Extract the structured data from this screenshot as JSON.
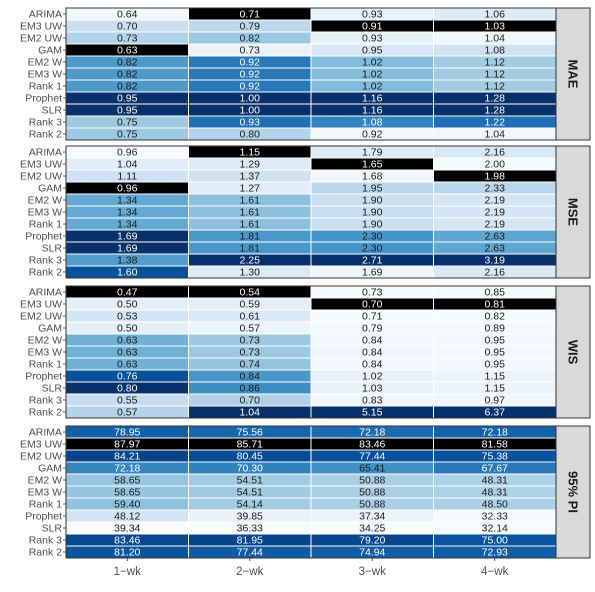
{
  "chart_data": {
    "type": "heatmap",
    "columns": [
      "1−wk",
      "2−wk",
      "3−wk",
      "4−wk"
    ],
    "rows": [
      "ARIMA",
      "EM3 UW",
      "EM2 UW",
      "GAM",
      "EM2 W",
      "EM3 W",
      "Rank 1",
      "Prophet",
      "SLR",
      "Rank 3",
      "Rank 2"
    ],
    "highlight_color": "#000000",
    "colorscale": [
      "#f7fbff",
      "#deebf7",
      "#c6dbef",
      "#9ecae1",
      "#6baed6",
      "#4292c6",
      "#2171b5",
      "#08519c",
      "#08306b"
    ],
    "panels": [
      {
        "metric": "MAE",
        "values": [
          [
            0.64,
            0.71,
            0.93,
            1.06
          ],
          [
            0.7,
            0.79,
            0.91,
            1.03
          ],
          [
            0.73,
            0.82,
            0.93,
            1.04
          ],
          [
            0.63,
            0.73,
            0.95,
            1.08
          ],
          [
            0.82,
            0.92,
            1.02,
            1.12
          ],
          [
            0.82,
            0.92,
            1.02,
            1.12
          ],
          [
            0.82,
            0.92,
            1.02,
            1.12
          ],
          [
            0.95,
            1.0,
            1.16,
            1.28
          ],
          [
            0.95,
            1.0,
            1.16,
            1.28
          ],
          [
            0.75,
            0.93,
            1.08,
            1.22
          ],
          [
            0.75,
            0.8,
            0.92,
            1.04
          ]
        ],
        "text": [
          [
            "0.64",
            "0.71",
            "0.93",
            "1.06"
          ],
          [
            "0.70",
            "0.79",
            "0.91",
            "1.03"
          ],
          [
            "0.73",
            "0.82",
            "0.93",
            "1.04"
          ],
          [
            "0.63",
            "0.73",
            "0.95",
            "1.08"
          ],
          [
            "0.82",
            "0.92",
            "1.02",
            "1.12"
          ],
          [
            "0.82",
            "0.92",
            "1.02",
            "1.12"
          ],
          [
            "0.82",
            "0.92",
            "1.02",
            "1.12"
          ],
          [
            "0.95",
            "1.00",
            "1.16",
            "1.28"
          ],
          [
            "0.95",
            "1.00",
            "1.16",
            "1.28"
          ],
          [
            "0.75",
            "0.93",
            "1.08",
            "1.22"
          ],
          [
            "0.75",
            "0.80",
            "0.92",
            "1.04"
          ]
        ],
        "best": [
          [
            3,
            0
          ],
          [
            0,
            1
          ],
          [
            1,
            2
          ],
          [
            1,
            3
          ]
        ]
      },
      {
        "metric": "MSE",
        "values": [
          [
            0.96,
            1.15,
            1.79,
            2.16
          ],
          [
            1.04,
            1.29,
            1.65,
            2.0
          ],
          [
            1.11,
            1.37,
            1.68,
            1.98
          ],
          [
            0.96,
            1.27,
            1.95,
            2.33
          ],
          [
            1.34,
            1.61,
            1.9,
            2.19
          ],
          [
            1.34,
            1.61,
            1.9,
            2.19
          ],
          [
            1.34,
            1.61,
            1.9,
            2.19
          ],
          [
            1.69,
            1.81,
            2.3,
            2.63
          ],
          [
            1.69,
            1.81,
            2.3,
            2.63
          ],
          [
            1.38,
            2.25,
            2.71,
            3.19
          ],
          [
            1.6,
            1.3,
            1.69,
            2.16
          ]
        ],
        "text": [
          [
            "0.96",
            "1.15",
            "1.79",
            "2.16"
          ],
          [
            "1.04",
            "1.29",
            "1.65",
            "2.00"
          ],
          [
            "1.11",
            "1.37",
            "1.68",
            "1.98"
          ],
          [
            "0.96",
            "1.27",
            "1.95",
            "2.33"
          ],
          [
            "1.34",
            "1.61",
            "1.90",
            "2.19"
          ],
          [
            "1.34",
            "1.61",
            "1.90",
            "2.19"
          ],
          [
            "1.34",
            "1.61",
            "1.90",
            "2.19"
          ],
          [
            "1.69",
            "1.81",
            "2.30",
            "2.63"
          ],
          [
            "1.69",
            "1.81",
            "2.30",
            "2.63"
          ],
          [
            "1.38",
            "2.25",
            "2.71",
            "3.19"
          ],
          [
            "1.60",
            "1.30",
            "1.69",
            "2.16"
          ]
        ],
        "best": [
          [
            3,
            0
          ],
          [
            0,
            1
          ],
          [
            1,
            2
          ],
          [
            2,
            3
          ]
        ]
      },
      {
        "metric": "WIS",
        "values": [
          [
            0.47,
            0.54,
            0.73,
            0.85
          ],
          [
            0.5,
            0.59,
            0.7,
            0.81
          ],
          [
            0.53,
            0.61,
            0.71,
            0.82
          ],
          [
            0.5,
            0.57,
            0.79,
            0.89
          ],
          [
            0.63,
            0.73,
            0.84,
            0.95
          ],
          [
            0.63,
            0.73,
            0.84,
            0.95
          ],
          [
            0.63,
            0.74,
            0.84,
            0.95
          ],
          [
            0.76,
            0.84,
            1.02,
            1.15
          ],
          [
            0.8,
            0.86,
            1.03,
            1.15
          ],
          [
            0.55,
            0.7,
            0.83,
            0.97
          ],
          [
            0.57,
            1.04,
            5.15,
            6.37
          ]
        ],
        "text": [
          [
            "0.47",
            "0.54",
            "0.73",
            "0.85"
          ],
          [
            "0.50",
            "0.59",
            "0.70",
            "0.81"
          ],
          [
            "0.53",
            "0.61",
            "0.71",
            "0.82"
          ],
          [
            "0.50",
            "0.57",
            "0.79",
            "0.89"
          ],
          [
            "0.63",
            "0.73",
            "0.84",
            "0.95"
          ],
          [
            "0.63",
            "0.73",
            "0.84",
            "0.95"
          ],
          [
            "0.63",
            "0.74",
            "0.84",
            "0.95"
          ],
          [
            "0.76",
            "0.84",
            "1.02",
            "1.15"
          ],
          [
            "0.80",
            "0.86",
            "1.03",
            "1.15"
          ],
          [
            "0.55",
            "0.70",
            "0.83",
            "0.97"
          ],
          [
            "0.57",
            "1.04",
            "5.15",
            "6.37"
          ]
        ],
        "best": [
          [
            0,
            0
          ],
          [
            0,
            1
          ],
          [
            1,
            2
          ],
          [
            1,
            3
          ]
        ]
      },
      {
        "metric": "95% PI",
        "values": [
          [
            78.95,
            75.56,
            72.18,
            72.18
          ],
          [
            87.97,
            85.71,
            83.46,
            81.58
          ],
          [
            84.21,
            80.45,
            77.44,
            75.38
          ],
          [
            72.18,
            70.3,
            65.41,
            67.67
          ],
          [
            58.65,
            54.51,
            50.88,
            48.31
          ],
          [
            58.65,
            54.51,
            50.88,
            48.31
          ],
          [
            59.4,
            54.14,
            50.88,
            48.5
          ],
          [
            48.12,
            39.85,
            37.34,
            32.33
          ],
          [
            39.34,
            36.33,
            34.25,
            32.14
          ],
          [
            83.46,
            81.95,
            79.2,
            75.0
          ],
          [
            81.2,
            77.44,
            74.94,
            72.93
          ]
        ],
        "text": [
          [
            "78.95",
            "75.56",
            "72.18",
            "72.18"
          ],
          [
            "87.97",
            "85.71",
            "83.46",
            "81.58"
          ],
          [
            "84.21",
            "80.45",
            "77.44",
            "75.38"
          ],
          [
            "72.18",
            "70.30",
            "65.41",
            "67.67"
          ],
          [
            "58.65",
            "54.51",
            "50.88",
            "48.31"
          ],
          [
            "58.65",
            "54.51",
            "50.88",
            "48.31"
          ],
          [
            "59.40",
            "54.14",
            "50.88",
            "48.50"
          ],
          [
            "48.12",
            "39.85",
            "37.34",
            "32.33"
          ],
          [
            "39.34",
            "36.33",
            "34.25",
            "32.14"
          ],
          [
            "83.46",
            "81.95",
            "79.20",
            "75.00"
          ],
          [
            "81.20",
            "77.44",
            "74.94",
            "72.93"
          ]
        ],
        "best": [
          [
            1,
            0
          ],
          [
            1,
            1
          ],
          [
            1,
            2
          ],
          [
            1,
            3
          ]
        ]
      }
    ]
  }
}
